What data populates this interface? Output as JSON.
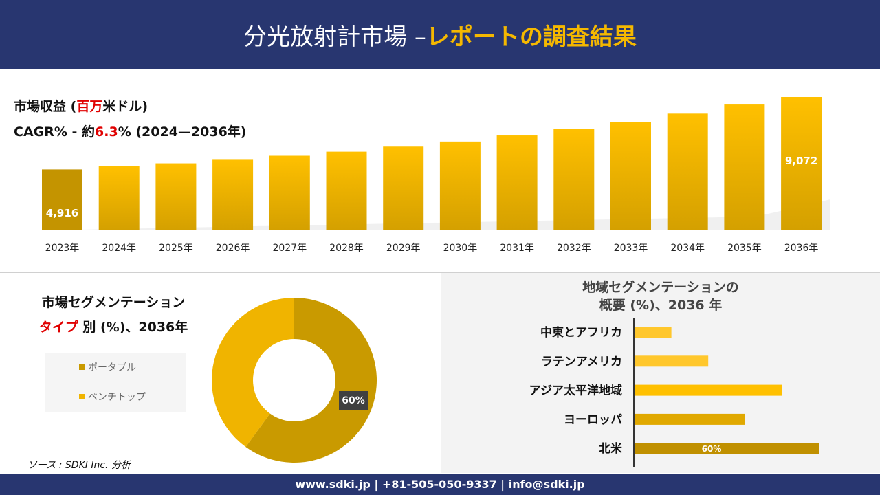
{
  "header": {
    "title_main": "分光放射計市場 –",
    "title_accent": "レポートの調査結果"
  },
  "revenue": {
    "label_prefix": "市場収益 (",
    "label_red": "百万",
    "label_suffix": "米ドル)",
    "cagr_prefix": "CAGR% - 約",
    "cagr_value": "6.3",
    "cagr_suffix": "% (2024—2036年)"
  },
  "segment": {
    "line1": "市場セグメンテーション",
    "line2_red": "タイプ",
    "line2_rest": " 別 (%)、2036年"
  },
  "source": "ソース : SDKI Inc. 分析",
  "region_title": {
    "line1": "地域セグメンテーションの",
    "line2": "概要 (%)、2036 年"
  },
  "footer": "www.sdki.jp | +81-505-050-9337 | info@sdki.jp",
  "colors": {
    "navy": "#283670",
    "accent": "#f5b800",
    "red": "#e00000",
    "portable": "#c99a00",
    "benchtop": "#f0b400"
  },
  "chart_data": [
    {
      "type": "bar",
      "title": "市場収益 (百万米ドル)",
      "categories": [
        "2023年",
        "2024年",
        "2025年",
        "2026年",
        "2027年",
        "2028年",
        "2029年",
        "2030年",
        "2031年",
        "2032年",
        "2033年",
        "2034年",
        "2035年",
        "2036年"
      ],
      "values": [
        4916,
        5091,
        5265,
        5468,
        5701,
        5933,
        6224,
        6515,
        6863,
        7241,
        7648,
        8113,
        8636,
        9072
      ],
      "data_labels": {
        "0": "4,916",
        "13": "9,072"
      },
      "ylim": [
        3434,
        9072
      ],
      "grid": false
    },
    {
      "type": "pie",
      "subtype": "donut",
      "categories": [
        "ポータブル",
        "ベンチトップ"
      ],
      "values": [
        60,
        40
      ],
      "colors": [
        "#c99a00",
        "#f0b400"
      ],
      "data_labels": {
        "0": "60%"
      },
      "legend": "left"
    },
    {
      "type": "bar",
      "orientation": "horizontal",
      "categories": [
        "中東とアフリカ",
        "ラテンアメリカ",
        "アジア太平洋地域",
        "ヨーロッパ",
        "北米"
      ],
      "values": [
        12,
        24,
        48,
        36,
        60
      ],
      "colors": [
        "#ffc72c",
        "#ffc72c",
        "#ffc000",
        "#e0a800",
        "#c09000"
      ],
      "data_labels": {
        "4": "60%"
      },
      "xlim": [
        0,
        60
      ]
    }
  ]
}
